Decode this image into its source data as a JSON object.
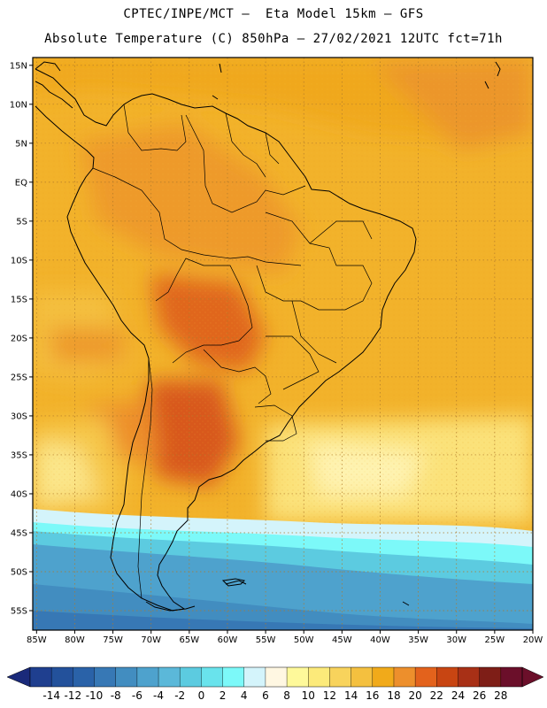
{
  "title": {
    "line1": "CPTEC/INPE/MCT –  Eta Model 15km – GFS",
    "line2": "Absolute Temperature (C) 850hPa – 27/02/2021 12UTC fct=71h"
  },
  "map": {
    "lat_labels": [
      "15N",
      "10N",
      "5N",
      "EQ",
      "5S",
      "10S",
      "15S",
      "20S",
      "25S",
      "30S",
      "35S",
      "40S",
      "45S",
      "50S",
      "55S"
    ],
    "lat_values": [
      15,
      10,
      5,
      0,
      -5,
      -10,
      -15,
      -20,
      -25,
      -30,
      -35,
      -40,
      -45,
      -50,
      -55
    ],
    "lon_labels": [
      "85W",
      "80W",
      "75W",
      "70W",
      "65W",
      "60W",
      "55W",
      "50W",
      "45W",
      "40W",
      "35W",
      "30W",
      "25W",
      "20W"
    ],
    "lon_values": [
      -85,
      -80,
      -75,
      -70,
      -65,
      -60,
      -55,
      -50,
      -45,
      -40,
      -35,
      -30,
      -25,
      -20
    ],
    "lon_range": [
      -85.5,
      -20
    ],
    "lat_range": [
      -57.5,
      16
    ]
  },
  "colorbar": {
    "labels": [
      "-14",
      "-12",
      "-10",
      "-8",
      "-6",
      "-4",
      "-2",
      "0",
      "2",
      "4",
      "6",
      "8",
      "10",
      "12",
      "14",
      "16",
      "18",
      "20",
      "22",
      "24",
      "26",
      "28"
    ],
    "colors": [
      "#1f3f8f",
      "#23519b",
      "#2a62a8",
      "#3778b5",
      "#428dc0",
      "#4ea2cd",
      "#5bb8d9",
      "#5ccbe0",
      "#69e3ec",
      "#7cf9f9",
      "#d4f4fb",
      "#fff7e2",
      "#fef99a",
      "#fcea7a",
      "#f8d35c",
      "#f4c03f",
      "#f1aa1a",
      "#ed8f2c",
      "#e3621c",
      "#c84512",
      "#a83016",
      "#7e1e17",
      "#6b0f2a"
    ],
    "arrow_left": "#1a2a7a",
    "arrow_right": "#6b0f2a"
  }
}
